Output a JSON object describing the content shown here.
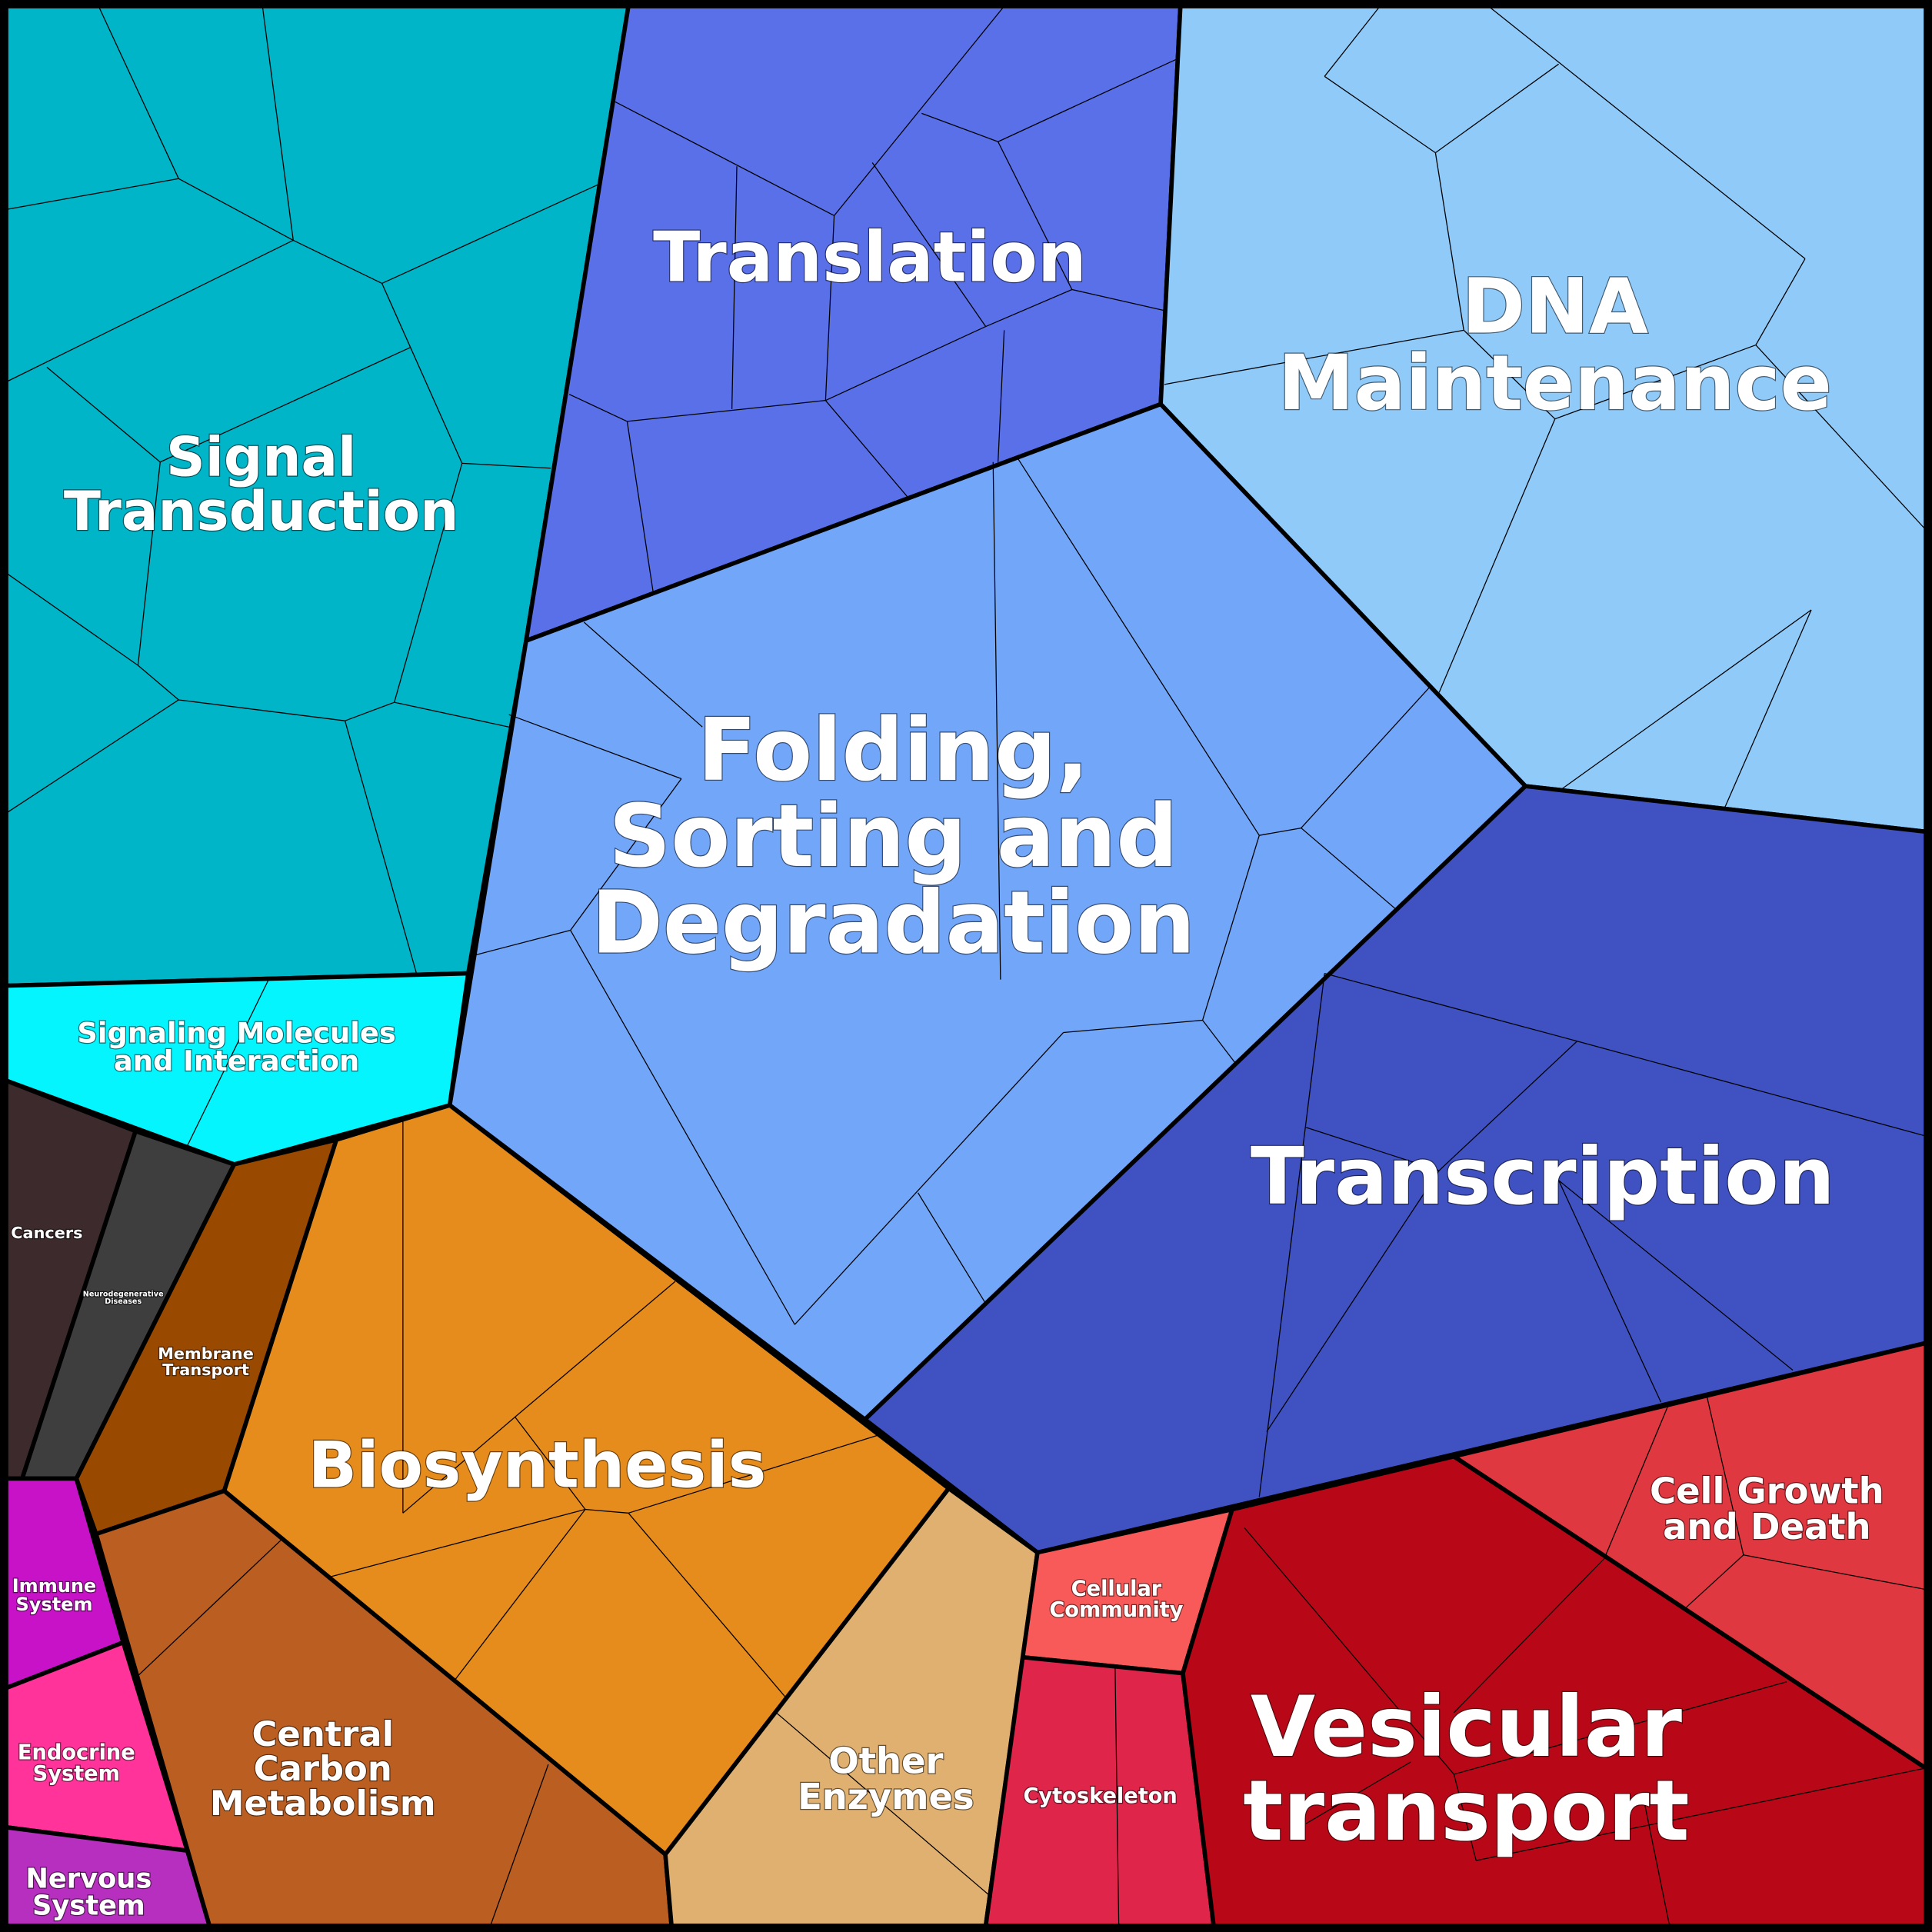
{
  "regions": [
    {
      "lines": [
        "Signal",
        "Transduction"
      ]
    },
    {
      "lines": [
        "Signaling Molecules",
        "and Interaction"
      ]
    },
    {
      "lines": [
        "Translation"
      ]
    },
    {
      "lines": [
        "DNA",
        "Maintenance"
      ]
    },
    {
      "lines": [
        "Folding,",
        "Sorting and",
        "Degradation"
      ]
    },
    {
      "lines": [
        "Transcription"
      ]
    },
    {
      "lines": [
        "Cancers"
      ]
    },
    {
      "lines": [
        "Neurodegenerative",
        "Diseases"
      ]
    },
    {
      "lines": [
        "Membrane",
        "Transport"
      ]
    },
    {
      "lines": [
        "Biosynthesis"
      ]
    },
    {
      "lines": [
        "Immune",
        "System"
      ]
    },
    {
      "lines": [
        "Endocrine",
        "System"
      ]
    },
    {
      "lines": [
        "Nervous",
        "System"
      ]
    },
    {
      "lines": [
        "Central",
        "Carbon",
        "Metabolism"
      ]
    },
    {
      "lines": [
        "Other",
        "Enzymes"
      ]
    },
    {
      "lines": [
        "Cellular",
        "Community"
      ]
    },
    {
      "lines": [
        "Cytoskeleton"
      ]
    },
    {
      "lines": [
        "Vesicular",
        "transport"
      ]
    },
    {
      "lines": [
        "Cell Growth",
        "and Death"
      ]
    }
  ]
}
